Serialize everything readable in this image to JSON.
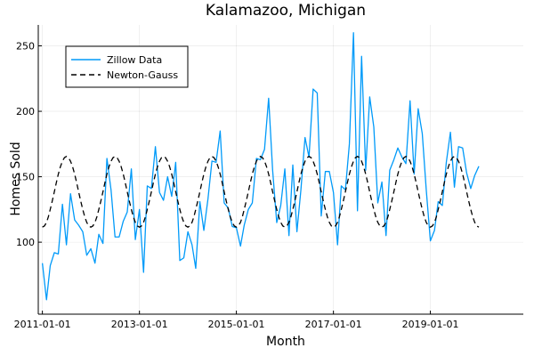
{
  "chart_data": {
    "type": "line",
    "title": "Kalamazoo, Michigan",
    "xlabel": "Month",
    "ylabel": "Homes Sold",
    "x_axis": {
      "kind": "date",
      "range": [
        "2010-12-01",
        "2020-12-01"
      ],
      "ticks": [
        {
          "date": "2011-01-01",
          "label": "2011-01-01"
        },
        {
          "date": "2013-01-01",
          "label": "2013-01-01"
        },
        {
          "date": "2015-01-01",
          "label": "2015-01-01"
        },
        {
          "date": "2017-01-01",
          "label": "2017-01-01"
        },
        {
          "date": "2019-01-01",
          "label": "2019-01-01"
        }
      ]
    },
    "y_axis": {
      "range": [
        45,
        266
      ],
      "ticks": [
        {
          "value": 100,
          "label": "100"
        },
        {
          "value": 150,
          "label": "150"
        },
        {
          "value": 200,
          "label": "200"
        },
        {
          "value": 250,
          "label": "250"
        }
      ]
    },
    "grid": true,
    "legend_position": "top-left",
    "series": [
      {
        "name": "Zillow Data",
        "color": "#009af9",
        "style": "solid",
        "points": [
          [
            "2011-01-01",
            84
          ],
          [
            "2011-02-01",
            56
          ],
          [
            "2011-03-01",
            82
          ],
          [
            "2011-04-01",
            92
          ],
          [
            "2011-05-01",
            91
          ],
          [
            "2011-06-01",
            129
          ],
          [
            "2011-07-01",
            98
          ],
          [
            "2011-08-01",
            137
          ],
          [
            "2011-09-01",
            117
          ],
          [
            "2011-10-01",
            113
          ],
          [
            "2011-11-01",
            108
          ],
          [
            "2011-12-01",
            90
          ],
          [
            "2012-01-01",
            95
          ],
          [
            "2012-02-01",
            84
          ],
          [
            "2012-03-01",
            106
          ],
          [
            "2012-04-01",
            99
          ],
          [
            "2012-05-01",
            164
          ],
          [
            "2012-06-01",
            140
          ],
          [
            "2012-07-01",
            104
          ],
          [
            "2012-08-01",
            104
          ],
          [
            "2012-09-01",
            116
          ],
          [
            "2012-10-01",
            123
          ],
          [
            "2012-11-01",
            156
          ],
          [
            "2012-12-01",
            102
          ],
          [
            "2013-01-01",
            125
          ],
          [
            "2013-02-01",
            77
          ],
          [
            "2013-03-01",
            143
          ],
          [
            "2013-04-01",
            141
          ],
          [
            "2013-05-01",
            173
          ],
          [
            "2013-06-01",
            138
          ],
          [
            "2013-07-01",
            132
          ],
          [
            "2013-08-01",
            150
          ],
          [
            "2013-09-01",
            135
          ],
          [
            "2013-10-01",
            161
          ],
          [
            "2013-11-01",
            86
          ],
          [
            "2013-12-01",
            88
          ],
          [
            "2014-01-01",
            108
          ],
          [
            "2014-02-01",
            98
          ],
          [
            "2014-03-01",
            80
          ],
          [
            "2014-04-01",
            131
          ],
          [
            "2014-05-01",
            109
          ],
          [
            "2014-06-01",
            133
          ],
          [
            "2014-07-01",
            162
          ],
          [
            "2014-08-01",
            161
          ],
          [
            "2014-09-01",
            185
          ],
          [
            "2014-10-01",
            130
          ],
          [
            "2014-11-01",
            126
          ],
          [
            "2014-12-01",
            112
          ],
          [
            "2015-01-01",
            111
          ],
          [
            "2015-02-01",
            97
          ],
          [
            "2015-03-01",
            113
          ],
          [
            "2015-04-01",
            125
          ],
          [
            "2015-05-01",
            130
          ],
          [
            "2015-06-01",
            164
          ],
          [
            "2015-07-01",
            163
          ],
          [
            "2015-08-01",
            171
          ],
          [
            "2015-09-01",
            210
          ],
          [
            "2015-10-01",
            155
          ],
          [
            "2015-11-01",
            115
          ],
          [
            "2015-12-01",
            128
          ],
          [
            "2016-01-01",
            156
          ],
          [
            "2016-02-01",
            105
          ],
          [
            "2016-03-01",
            159
          ],
          [
            "2016-04-01",
            108
          ],
          [
            "2016-05-01",
            140
          ],
          [
            "2016-06-01",
            180
          ],
          [
            "2016-07-01",
            165
          ],
          [
            "2016-08-01",
            217
          ],
          [
            "2016-09-01",
            214
          ],
          [
            "2016-10-01",
            120
          ],
          [
            "2016-11-01",
            154
          ],
          [
            "2016-12-01",
            154
          ],
          [
            "2017-01-01",
            138
          ],
          [
            "2017-02-01",
            98
          ],
          [
            "2017-03-01",
            143
          ],
          [
            "2017-04-01",
            140
          ],
          [
            "2017-05-01",
            175
          ],
          [
            "2017-06-01",
            260
          ],
          [
            "2017-07-01",
            124
          ],
          [
            "2017-08-01",
            242
          ],
          [
            "2017-09-01",
            155
          ],
          [
            "2017-10-01",
            211
          ],
          [
            "2017-11-01",
            188
          ],
          [
            "2017-12-01",
            130
          ],
          [
            "2018-01-01",
            146
          ],
          [
            "2018-02-01",
            105
          ],
          [
            "2018-03-01",
            155
          ],
          [
            "2018-04-01",
            163
          ],
          [
            "2018-05-01",
            172
          ],
          [
            "2018-06-01",
            165
          ],
          [
            "2018-07-01",
            160
          ],
          [
            "2018-08-01",
            208
          ],
          [
            "2018-09-01",
            152
          ],
          [
            "2018-10-01",
            202
          ],
          [
            "2018-11-01",
            183
          ],
          [
            "2018-12-01",
            140
          ],
          [
            "2019-01-01",
            101
          ],
          [
            "2019-02-01",
            109
          ],
          [
            "2019-03-01",
            131
          ],
          [
            "2019-04-01",
            128
          ],
          [
            "2019-05-01",
            161
          ],
          [
            "2019-06-01",
            184
          ],
          [
            "2019-07-01",
            142
          ],
          [
            "2019-08-01",
            173
          ],
          [
            "2019-09-01",
            172
          ],
          [
            "2019-10-01",
            153
          ],
          [
            "2019-11-01",
            141
          ],
          [
            "2019-12-01",
            151
          ],
          [
            "2020-01-01",
            158
          ]
        ]
      },
      {
        "name": "Newton-Gauss",
        "color": "#000000",
        "style": "dashed",
        "model": {
          "kind": "sinusoid",
          "mean": 138.5,
          "amplitude": 27,
          "period_months": 12,
          "peak_month": 7,
          "start": "2011-01-01",
          "end": "2020-01-01"
        }
      }
    ]
  }
}
